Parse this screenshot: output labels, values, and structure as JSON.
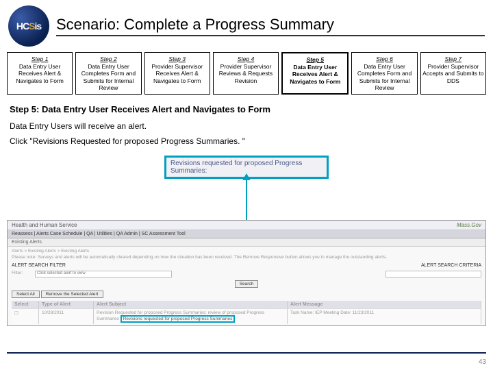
{
  "header": {
    "logo_text_1": "HC",
    "logo_text_2": "S",
    "logo_text_3": "is",
    "title": "Scenario: Complete a Progress Summary"
  },
  "steps": [
    {
      "label": "Step 1",
      "text": "Data Entry User Receives Alert & Navigates to Form"
    },
    {
      "label": "Step 2",
      "text": "Data Entry User Completes Form and Submits for Internal Review"
    },
    {
      "label": "Step 3",
      "text": "Provider Supervisor Receives Alert & Navigates to Form"
    },
    {
      "label": "Step 4",
      "text": "Provider Supervisor Reviews & Requests Revision"
    },
    {
      "label": "Step 5",
      "text": "Data Entry User Receives Alert & Navigates to Form"
    },
    {
      "label": "Step 6",
      "text": "Data Entry User Completes Form and Submits for Internal Review"
    },
    {
      "label": "Step 7",
      "text": "Provider Supervisor Accepts and Submits to DDS"
    }
  ],
  "subtitle": "Step 5: Data Entry User Receives Alert and Navigates to Form",
  "body_line1": "Data Entry Users will receive an alert.",
  "body_line2": "Click \"Revisions Requested for proposed Progress Summaries. \"",
  "callout": "Revisions requested for proposed Progress Summaries:",
  "screenshot": {
    "top_left": "Health and Human Service",
    "top_right": "Mass.Gov",
    "tabs": "Reassess | Alerts   Case Schedule | QA | Utilities | QA Admin | SC Assessment Tool",
    "subhead": "Existing Alerts",
    "breadcrumb": "Alerts > Existing Alerts > Existing Alerts",
    "note": "Please note: Surveys and alerts will be automatically cleared depending on how the situation has been resolved. The Remove Responsive button allows you to manage the outstanding alerts.",
    "filter_left": "ALERT SEARCH FILTER",
    "filter_right": "ALERT SEARCH CRITERIA",
    "label_filter": "Filter:",
    "filter_value": "Click selected alert to view",
    "btn_search": "Search",
    "btn_select": "Select All",
    "btn_remove": "Remove the Selected Alert",
    "th1": "Select",
    "th2": "Type of Alert",
    "th3": "Alert Subject",
    "th4": "Alert Message",
    "row_date": "10/28/2011",
    "row_subject": "Revision Requested for proposed Progress Summaries: review of proposed Progress Summaries",
    "row_link": "Revisions requested for proposed Progress Summaries",
    "row_msg": "Task Name: IEP Meeting Date:  11/23/2011"
  },
  "page_num": "43"
}
